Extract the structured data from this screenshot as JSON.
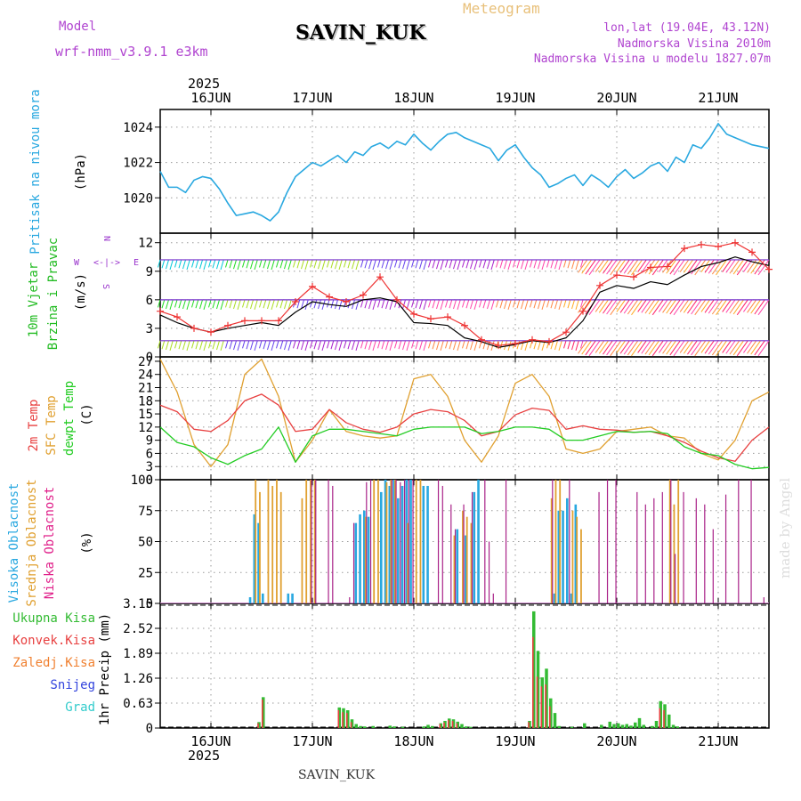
{
  "header": {
    "model_label": "Model",
    "model_name": "wrf-nmm_v3.9.1  e3km",
    "station": "SAVIN_KUK",
    "product": "Meteogram",
    "lonlat": "lon,lat (19.04E, 43.12N)",
    "altitude": "Nadmorska Visina 2010m",
    "model_altitude": "Nadmorska Visina u modelu 1827.07m",
    "year": "2025",
    "footer_station": "SAVIN_KUK",
    "credit": "made by Angel"
  },
  "colors": {
    "pressure": "#29a8e0",
    "wind_label": "#22bb22",
    "compass": "#9933cc",
    "t2m": "#e84040",
    "sfc": "#e0a030",
    "dew": "#22cc22",
    "cloud_high": "#29a8e0",
    "cloud_mid": "#e0a030",
    "cloud_low": "#aa2288",
    "precip_total": "#33bb33",
    "precip_conv": "#e84040",
    "precip_frozen": "#f08030",
    "snow": "#3344dd",
    "graupel": "#33cccc"
  },
  "compass": {
    "n": "N",
    "s": "S",
    "e": "E",
    "w": "W"
  },
  "chart_data": [
    {
      "type": "line",
      "title": "Pritisak na nivou mora",
      "ylabel": "Pritisak na nivou mora",
      "yunit": "(hPa)",
      "x_ticks": [
        "16JUN",
        "17JUN",
        "18JUN",
        "19JUN",
        "20JUN",
        "21JUN"
      ],
      "xlim_hours": [
        0,
        144
      ],
      "ylim": [
        1018,
        1025
      ],
      "yticks": [
        1020,
        1022,
        1024
      ],
      "series": [
        {
          "name": "MSLP",
          "x": [
            0,
            2,
            4,
            6,
            8,
            10,
            12,
            14,
            16,
            18,
            20,
            22,
            24,
            26,
            28,
            30,
            32,
            34,
            36,
            38,
            40,
            42,
            44,
            46,
            48,
            50,
            52,
            54,
            56,
            58,
            60,
            62,
            64,
            66,
            68,
            70,
            72,
            74,
            76,
            78,
            80,
            82,
            84,
            86,
            88,
            90,
            92,
            94,
            96,
            98,
            100,
            102,
            104,
            106,
            108,
            110,
            112,
            114,
            116,
            118,
            120,
            122,
            124,
            126,
            128,
            130,
            132,
            134,
            136,
            138,
            140,
            142,
            144
          ],
          "values": [
            1021.5,
            1020.6,
            1020.6,
            1020.3,
            1021.0,
            1021.2,
            1021.1,
            1020.5,
            1019.7,
            1019.0,
            1019.1,
            1019.2,
            1019.0,
            1018.7,
            1019.2,
            1020.3,
            1021.2,
            1021.6,
            1022.0,
            1021.8,
            1022.1,
            1022.4,
            1022.0,
            1022.6,
            1022.4,
            1022.9,
            1023.1,
            1022.8,
            1023.2,
            1023.0,
            1023.6,
            1023.1,
            1022.7,
            1023.2,
            1023.6,
            1023.7,
            1023.4,
            1023.2,
            1023.0,
            1022.8,
            1022.1,
            1022.7,
            1023.0,
            1022.3,
            1021.7,
            1021.3,
            1020.6,
            1020.8,
            1021.1,
            1021.3,
            1020.7,
            1021.3,
            1021.0,
            1020.6,
            1021.2,
            1021.6,
            1021.1,
            1021.4,
            1021.8,
            1022.0,
            1021.5,
            1022.3,
            1022.0,
            1023.0,
            1022.8,
            1023.4,
            1024.2,
            1023.6,
            1023.4,
            1023.2,
            1023.0,
            1022.9,
            1022.8
          ]
        }
      ]
    },
    {
      "type": "line",
      "title": "10m Vjetar Brzina i Pravac",
      "ylabel": "10m Vjetar Brzina i Pravac",
      "yunit": "(m/s)",
      "ylim": [
        0,
        13
      ],
      "yticks": [
        0,
        3,
        6,
        9,
        12
      ],
      "barb_rows_level": [
        10.2,
        6.0,
        1.7
      ],
      "series": [
        {
          "name": "speed_model",
          "x": [
            0,
            4,
            8,
            12,
            16,
            20,
            24,
            28,
            32,
            36,
            40,
            44,
            48,
            52,
            56,
            60,
            64,
            68,
            72,
            76,
            80,
            84,
            88,
            92,
            96,
            100,
            104,
            108,
            112,
            116,
            120,
            124,
            128,
            132,
            136,
            140,
            144
          ],
          "values": [
            4.4,
            3.6,
            3.0,
            2.6,
            3.0,
            3.3,
            3.6,
            3.3,
            4.7,
            5.8,
            5.5,
            5.3,
            6.0,
            6.2,
            5.8,
            3.6,
            3.5,
            3.3,
            2.0,
            1.6,
            1.0,
            1.3,
            1.7,
            1.5,
            2.0,
            3.8,
            6.8,
            7.5,
            7.2,
            7.9,
            7.6,
            8.6,
            9.5,
            9.9,
            10.5,
            10.0,
            9.6
          ]
        },
        {
          "name": "speed_gust",
          "x": [
            0,
            4,
            8,
            12,
            16,
            20,
            24,
            28,
            32,
            36,
            40,
            44,
            48,
            52,
            56,
            60,
            64,
            68,
            72,
            76,
            80,
            84,
            88,
            92,
            96,
            100,
            104,
            108,
            112,
            116,
            120,
            124,
            128,
            132,
            136,
            140,
            144
          ],
          "values": [
            4.8,
            4.2,
            3.0,
            2.6,
            3.3,
            3.8,
            3.8,
            3.8,
            5.8,
            7.4,
            6.3,
            5.8,
            6.5,
            8.4,
            6.0,
            4.5,
            4.0,
            4.2,
            3.3,
            1.8,
            1.2,
            1.4,
            1.8,
            1.6,
            2.6,
            4.8,
            7.5,
            8.6,
            8.4,
            9.4,
            9.5,
            11.4,
            11.8,
            11.6,
            12.0,
            11.0,
            9.2
          ]
        }
      ]
    },
    {
      "type": "line",
      "title": "2m Temp / SFC Temp / dewpt Temp",
      "ylabel": "2m Temp  SFC Temp  dewpt Temp",
      "yunit": "(C)",
      "ylim": [
        0,
        28
      ],
      "yticks": [
        0,
        3,
        6,
        9,
        12,
        15,
        18,
        21,
        24,
        27
      ],
      "series": [
        {
          "name": "2m Temp",
          "x": [
            0,
            4,
            8,
            12,
            16,
            20,
            24,
            28,
            32,
            36,
            40,
            44,
            48,
            52,
            56,
            60,
            64,
            68,
            72,
            76,
            80,
            84,
            88,
            92,
            96,
            100,
            104,
            108,
            112,
            116,
            120,
            124,
            128,
            132,
            136,
            140,
            144
          ],
          "values": [
            17,
            15.5,
            11.5,
            11,
            13.5,
            18,
            19.5,
            17,
            11,
            11.5,
            16,
            13,
            11.5,
            10.8,
            12,
            15,
            16,
            15.5,
            13.5,
            10,
            11,
            14.8,
            16.3,
            15.8,
            11.5,
            12.3,
            11.5,
            11.3,
            10.8,
            11,
            10,
            8.5,
            6.5,
            5,
            4.2,
            9,
            12
          ]
        },
        {
          "name": "SFC Temp",
          "x": [
            0,
            4,
            8,
            12,
            16,
            20,
            24,
            28,
            32,
            36,
            40,
            44,
            48,
            52,
            56,
            60,
            64,
            68,
            72,
            76,
            80,
            84,
            88,
            92,
            96,
            100,
            104,
            108,
            112,
            116,
            120,
            124,
            128,
            132,
            136,
            140,
            144
          ],
          "values": [
            27.5,
            20,
            8,
            3,
            8,
            24,
            27.5,
            19,
            4,
            9,
            16,
            11,
            10,
            9.5,
            10,
            23,
            24,
            19,
            9,
            4,
            10,
            22,
            24,
            19,
            7,
            6,
            7,
            11,
            11.5,
            12,
            10,
            9.5,
            6,
            4.5,
            9,
            18,
            20
          ]
        },
        {
          "name": "dewpt Temp",
          "x": [
            0,
            4,
            8,
            12,
            16,
            20,
            24,
            28,
            32,
            36,
            40,
            44,
            48,
            52,
            56,
            60,
            64,
            68,
            72,
            76,
            80,
            84,
            88,
            92,
            96,
            100,
            104,
            108,
            112,
            116,
            120,
            124,
            128,
            132,
            136,
            140,
            144
          ],
          "values": [
            12,
            8.5,
            7.5,
            5,
            3.5,
            5.5,
            7,
            12,
            4,
            10,
            11.5,
            11.5,
            11,
            10.5,
            10,
            11.5,
            12,
            12,
            12,
            10.5,
            11,
            12,
            12,
            11.5,
            9,
            9,
            10,
            11,
            10.8,
            11,
            10.5,
            7.5,
            6,
            5.5,
            3.5,
            2.5,
            2.8
          ]
        }
      ]
    },
    {
      "type": "bar",
      "title": "Visoka / Srednja / Niska Oblacnost",
      "ylabel": "Visoka Oblacnost  Srednja Oblacnost  Niska Oblacnost",
      "yunit": "(%)",
      "ylim": [
        0,
        100
      ],
      "yticks": [
        0,
        25,
        50,
        75,
        100
      ],
      "series": [
        {
          "name": "Visoka",
          "x": [
            21,
            22,
            23,
            24,
            30,
            31,
            46,
            47,
            48,
            49,
            52,
            53,
            54,
            55,
            56,
            57,
            58,
            59,
            62,
            63,
            70,
            72,
            74,
            75,
            93,
            94,
            95,
            96,
            97,
            98
          ],
          "values": [
            5,
            72,
            65,
            8,
            8,
            8,
            65,
            72,
            75,
            70,
            90,
            100,
            95,
            100,
            85,
            95,
            100,
            100,
            95,
            95,
            60,
            55,
            90,
            100,
            8,
            75,
            75,
            85,
            8,
            80
          ]
        },
        {
          "name": "Srednja",
          "x": [
            22,
            23,
            25,
            26,
            27,
            28,
            33,
            34,
            35,
            36,
            48,
            50,
            51,
            53,
            54,
            55,
            58,
            60,
            61,
            69,
            71,
            72,
            73,
            92,
            93,
            94,
            97,
            98,
            99,
            120,
            121,
            122
          ],
          "values": [
            100,
            90,
            100,
            95,
            100,
            90,
            85,
            100,
            100,
            100,
            70,
            100,
            100,
            98,
            100,
            100,
            65,
            100,
            100,
            55,
            75,
            70,
            65,
            85,
            100,
            100,
            75,
            70,
            60,
            100,
            80,
            100
          ]
        },
        {
          "name": "Niska",
          "x": [
            35,
            36,
            39,
            40,
            44,
            45,
            48,
            49,
            54,
            55,
            56,
            57,
            58,
            59,
            65,
            66,
            68,
            69,
            71,
            73,
            76,
            77,
            78,
            81,
            92,
            96,
            103,
            105,
            107,
            112,
            114,
            116,
            118,
            120,
            121,
            123,
            126,
            128,
            130,
            133,
            136,
            139,
            142
          ],
          "values": [
            100,
            100,
            100,
            95,
            5,
            65,
            98,
            100,
            100,
            100,
            98,
            100,
            100,
            100,
            100,
            95,
            80,
            60,
            80,
            90,
            100,
            50,
            8,
            100,
            100,
            100,
            90,
            100,
            100,
            90,
            80,
            85,
            90,
            100,
            40,
            90,
            85,
            80,
            60,
            88,
            100,
            100,
            5
          ]
        }
      ]
    },
    {
      "type": "bar",
      "title": "1hr Precip",
      "ylabel": "1hr Precip",
      "yunit": "(mm)",
      "ylim": [
        0,
        3.15
      ],
      "yticks": [
        0,
        0.63,
        1.26,
        1.89,
        2.52,
        3.15
      ],
      "legend": [
        "Ukupna Kisa",
        "Konvek.Kisa",
        "Zaledj.Kisa",
        "Snijeg",
        "Grad"
      ],
      "series": [
        {
          "name": "Ukupna Kisa",
          "x": [
            23,
            24,
            42,
            43,
            44,
            45,
            46,
            47,
            48,
            50,
            54,
            55,
            57,
            62,
            63,
            64,
            66,
            67,
            68,
            69,
            70,
            71,
            72,
            73,
            87,
            88,
            89,
            90,
            91,
            92,
            93,
            94,
            97,
            100,
            104,
            106,
            107,
            108,
            109,
            110,
            111,
            112,
            113,
            114,
            116,
            117,
            118,
            119,
            120,
            121,
            122
          ],
          "values": [
            0.15,
            0.78,
            0.52,
            0.5,
            0.45,
            0.22,
            0.1,
            0.05,
            0.04,
            0.05,
            0.06,
            0.04,
            0.03,
            0.04,
            0.08,
            0.05,
            0.12,
            0.18,
            0.24,
            0.22,
            0.16,
            0.1,
            0.04,
            0.03,
            0.18,
            2.95,
            1.95,
            1.28,
            1.5,
            0.75,
            0.38,
            0.05,
            0.03,
            0.12,
            0.08,
            0.16,
            0.1,
            0.12,
            0.08,
            0.1,
            0.06,
            0.14,
            0.25,
            0.08,
            0.05,
            0.18,
            0.68,
            0.6,
            0.34,
            0.08,
            0.04
          ]
        },
        {
          "name": "Konvek.Kisa",
          "x": [
            23,
            24,
            42,
            43,
            44,
            45,
            66,
            67,
            68,
            69,
            70,
            87,
            88,
            89,
            90,
            91,
            92,
            118,
            119
          ],
          "values": [
            0.12,
            0.72,
            0.45,
            0.4,
            0.38,
            0.15,
            0.1,
            0.14,
            0.2,
            0.18,
            0.12,
            0.15,
            2.3,
            1.3,
            1.05,
            1.1,
            0.55,
            0.5,
            0.45
          ]
        }
      ]
    }
  ]
}
